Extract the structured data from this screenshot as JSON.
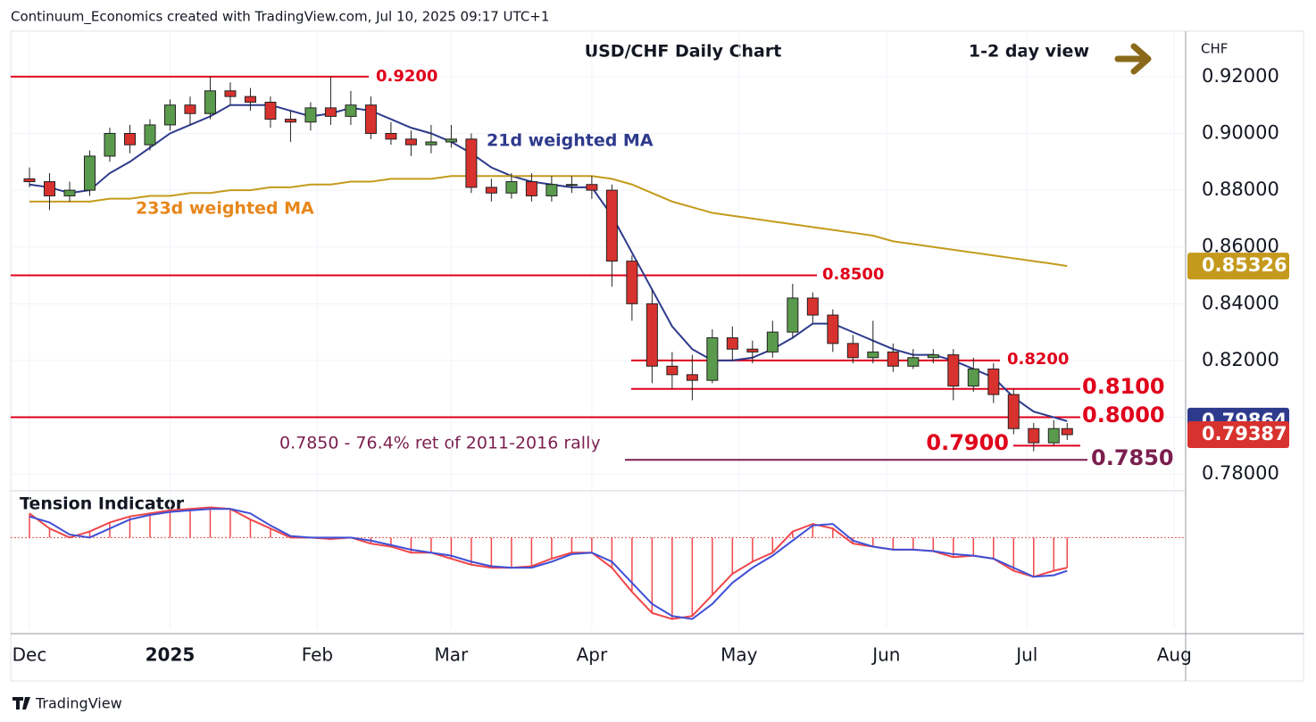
{
  "chart_data": {
    "type": "candlestick",
    "source": "Continuum_Economics created with TradingView.com, Jul 10, 2025 09:17 UTC+1",
    "title": "USD/CHF Daily Chart",
    "view": "1-2 day view",
    "currency": "CHF",
    "brand": "TradingView",
    "note": "0.7850 - 76.4% ret of 2011-2016 rally",
    "up_color": "#5a9a4c",
    "down_color": "#d8322f",
    "x": [
      0,
      3,
      6,
      9,
      12,
      15,
      18,
      21,
      24,
      27,
      30,
      33,
      36,
      39,
      42,
      45,
      48,
      51,
      54,
      57,
      60,
      63,
      66,
      69,
      72,
      75,
      78,
      81,
      84,
      87,
      90,
      93,
      96,
      99,
      102,
      105,
      108,
      111,
      114,
      117,
      120,
      123,
      126,
      129,
      132,
      135,
      138,
      141,
      144,
      147,
      150,
      153,
      155
    ],
    "xlim": [
      -2.8,
      172.7
    ],
    "xticks": [
      {
        "value": 0,
        "label": "Dec"
      },
      {
        "value": 21,
        "label": "2025"
      },
      {
        "value": 43,
        "label": "Feb"
      },
      {
        "value": 63,
        "label": "Mar"
      },
      {
        "value": 84,
        "label": "Apr"
      },
      {
        "value": 106,
        "label": "May"
      },
      {
        "value": 128,
        "label": "Jun"
      },
      {
        "value": 149,
        "label": "Jul"
      },
      {
        "value": 171,
        "label": "Aug"
      }
    ],
    "ylim": [
      0.7747,
      0.936
    ],
    "yticks": [
      {
        "value": 0.78,
        "label": "0.78000"
      },
      {
        "value": 0.8,
        "label": "0.80000"
      },
      {
        "value": 0.82,
        "label": "0.82000"
      },
      {
        "value": 0.84,
        "label": "0.84000"
      },
      {
        "value": 0.86,
        "label": "0.86000"
      },
      {
        "value": 0.88,
        "label": "0.88000"
      },
      {
        "value": 0.9,
        "label": "0.90000"
      },
      {
        "value": 0.92,
        "label": "0.92000"
      }
    ],
    "grid": true,
    "ohlc": [
      [
        0.884,
        0.888,
        0.881,
        0.883
      ],
      [
        0.883,
        0.886,
        0.873,
        0.878
      ],
      [
        0.878,
        0.883,
        0.876,
        0.88
      ],
      [
        0.88,
        0.894,
        0.878,
        0.892
      ],
      [
        0.892,
        0.902,
        0.89,
        0.9
      ],
      [
        0.9,
        0.903,
        0.893,
        0.896
      ],
      [
        0.896,
        0.905,
        0.894,
        0.903
      ],
      [
        0.903,
        0.912,
        0.901,
        0.91
      ],
      [
        0.91,
        0.913,
        0.903,
        0.907
      ],
      [
        0.907,
        0.92,
        0.905,
        0.915
      ],
      [
        0.915,
        0.918,
        0.91,
        0.913
      ],
      [
        0.913,
        0.916,
        0.908,
        0.911
      ],
      [
        0.911,
        0.913,
        0.902,
        0.905
      ],
      [
        0.905,
        0.908,
        0.897,
        0.904
      ],
      [
        0.904,
        0.911,
        0.901,
        0.909
      ],
      [
        0.909,
        0.92,
        0.903,
        0.906
      ],
      [
        0.906,
        0.915,
        0.903,
        0.91
      ],
      [
        0.91,
        0.913,
        0.898,
        0.9
      ],
      [
        0.9,
        0.904,
        0.896,
        0.898
      ],
      [
        0.898,
        0.901,
        0.892,
        0.896
      ],
      [
        0.896,
        0.903,
        0.893,
        0.897
      ],
      [
        0.897,
        0.903,
        0.895,
        0.898
      ],
      [
        0.898,
        0.9,
        0.879,
        0.881
      ],
      [
        0.881,
        0.884,
        0.876,
        0.879
      ],
      [
        0.879,
        0.886,
        0.877,
        0.883
      ],
      [
        0.883,
        0.886,
        0.876,
        0.878
      ],
      [
        0.878,
        0.885,
        0.876,
        0.882
      ],
      [
        0.882,
        0.885,
        0.879,
        0.882
      ],
      [
        0.882,
        0.885,
        0.877,
        0.88
      ],
      [
        0.88,
        0.882,
        0.846,
        0.855
      ],
      [
        0.855,
        0.857,
        0.834,
        0.84
      ],
      [
        0.84,
        0.845,
        0.812,
        0.818
      ],
      [
        0.818,
        0.823,
        0.81,
        0.815
      ],
      [
        0.815,
        0.822,
        0.806,
        0.813
      ],
      [
        0.813,
        0.831,
        0.812,
        0.828
      ],
      [
        0.828,
        0.832,
        0.82,
        0.824
      ],
      [
        0.824,
        0.827,
        0.819,
        0.823
      ],
      [
        0.823,
        0.834,
        0.821,
        0.83
      ],
      [
        0.83,
        0.847,
        0.828,
        0.842
      ],
      [
        0.842,
        0.844,
        0.833,
        0.836
      ],
      [
        0.836,
        0.838,
        0.823,
        0.826
      ],
      [
        0.826,
        0.829,
        0.819,
        0.821
      ],
      [
        0.821,
        0.834,
        0.819,
        0.823
      ],
      [
        0.823,
        0.826,
        0.816,
        0.818
      ],
      [
        0.818,
        0.824,
        0.817,
        0.821
      ],
      [
        0.821,
        0.824,
        0.819,
        0.822
      ],
      [
        0.822,
        0.824,
        0.806,
        0.811
      ],
      [
        0.811,
        0.821,
        0.809,
        0.817
      ],
      [
        0.817,
        0.819,
        0.805,
        0.808
      ],
      [
        0.808,
        0.81,
        0.794,
        0.796
      ],
      [
        0.796,
        0.798,
        0.788,
        0.791
      ],
      [
        0.791,
        0.799,
        0.79,
        0.796
      ],
      [
        0.796,
        0.798,
        0.792,
        0.79387
      ]
    ],
    "series": [
      {
        "name": "21d weighted MA",
        "color": "#2e3a8c",
        "values": [
          0.882,
          0.881,
          0.879,
          0.88,
          0.886,
          0.89,
          0.895,
          0.9,
          0.903,
          0.906,
          0.91,
          0.91,
          0.91,
          0.908,
          0.906,
          0.907,
          0.909,
          0.908,
          0.905,
          0.902,
          0.9,
          0.897,
          0.893,
          0.888,
          0.885,
          0.883,
          0.882,
          0.881,
          0.881,
          0.871,
          0.858,
          0.845,
          0.832,
          0.824,
          0.82,
          0.82,
          0.821,
          0.824,
          0.828,
          0.833,
          0.833,
          0.83,
          0.827,
          0.824,
          0.822,
          0.822,
          0.82,
          0.817,
          0.814,
          0.807,
          0.802,
          0.8,
          0.79864
        ]
      },
      {
        "name": "233d weighted MA",
        "color": "#c49a1c",
        "values": [
          0.876,
          0.876,
          0.876,
          0.876,
          0.877,
          0.877,
          0.878,
          0.878,
          0.879,
          0.879,
          0.88,
          0.88,
          0.881,
          0.881,
          0.882,
          0.882,
          0.883,
          0.883,
          0.884,
          0.884,
          0.884,
          0.885,
          0.885,
          0.885,
          0.885,
          0.885,
          0.885,
          0.885,
          0.885,
          0.884,
          0.882,
          0.879,
          0.876,
          0.874,
          0.872,
          0.871,
          0.87,
          0.869,
          0.868,
          0.867,
          0.866,
          0.865,
          0.864,
          0.862,
          0.861,
          0.86,
          0.859,
          0.858,
          0.857,
          0.856,
          0.855,
          0.854,
          0.85326
        ]
      }
    ],
    "levels": [
      {
        "value": 0.92,
        "label": "0.9200",
        "color": "#e0001b"
      },
      {
        "value": 0.85,
        "label": "0.8500",
        "color": "#e0001b"
      },
      {
        "value": 0.82,
        "label": "0.8200",
        "color": "#e0001b"
      },
      {
        "value": 0.81,
        "label": "0.8100",
        "color": "#e0001b"
      },
      {
        "value": 0.8,
        "label": "0.8000",
        "color": "#e0001b"
      },
      {
        "value": 0.79,
        "label": "0.7900",
        "color": "#e0001b"
      },
      {
        "value": 0.785,
        "label": "0.7850",
        "color": "#7b1f4f"
      }
    ],
    "tension": {
      "title": "Tension Indicator",
      "ylim": [
        -2.8,
        1.4
      ],
      "series": [
        {
          "color": "#f0474a",
          "values": [
            0.8,
            0.3,
            0,
            0.2,
            0.5,
            0.7,
            0.8,
            0.9,
            0.95,
            1.0,
            0.95,
            0.6,
            0.3,
            0,
            0,
            -0.05,
            0,
            -0.2,
            -0.3,
            -0.5,
            -0.5,
            -0.7,
            -0.9,
            -1.0,
            -1.0,
            -0.95,
            -0.7,
            -0.5,
            -0.5,
            -1.0,
            -1.8,
            -2.5,
            -2.7,
            -2.6,
            -1.9,
            -1.2,
            -0.8,
            -0.5,
            0.2,
            0.45,
            0.3,
            -0.2,
            -0.3,
            -0.4,
            -0.4,
            -0.45,
            -0.65,
            -0.6,
            -0.7,
            -1.1,
            -1.3,
            -1.1,
            -1.0
          ]
        },
        {
          "color": "#3f4fd6",
          "values": [
            0.7,
            0.5,
            0.1,
            0,
            0.3,
            0.6,
            0.75,
            0.85,
            0.9,
            0.95,
            0.95,
            0.8,
            0.4,
            0.05,
            0,
            0,
            0,
            -0.1,
            -0.25,
            -0.4,
            -0.5,
            -0.6,
            -0.8,
            -0.95,
            -1.0,
            -1.0,
            -0.8,
            -0.55,
            -0.5,
            -0.8,
            -1.5,
            -2.2,
            -2.6,
            -2.7,
            -2.2,
            -1.5,
            -1.0,
            -0.6,
            -0.1,
            0.4,
            0.45,
            -0.1,
            -0.3,
            -0.4,
            -0.4,
            -0.45,
            -0.55,
            -0.6,
            -0.7,
            -1.0,
            -1.3,
            -1.25,
            -1.1
          ]
        }
      ]
    }
  }
}
